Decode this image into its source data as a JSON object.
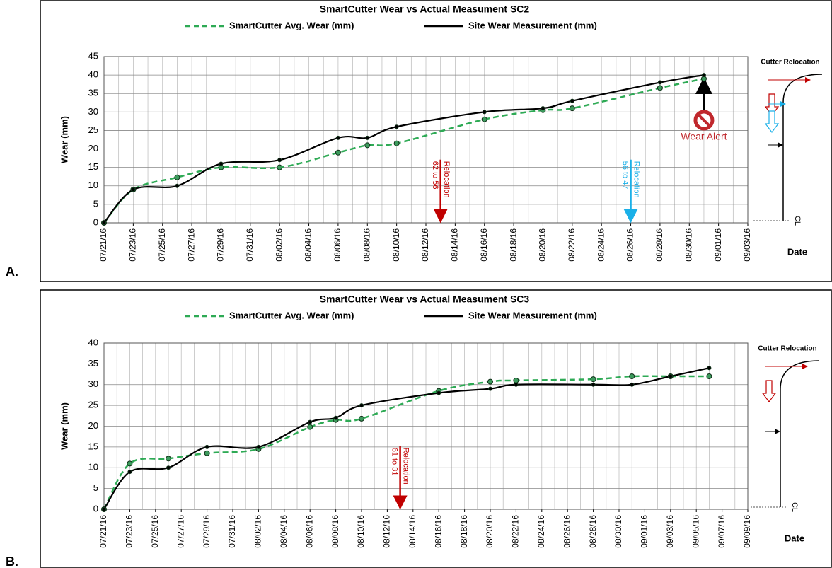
{
  "chart_data": [
    {
      "type": "line",
      "panel_label": "A.",
      "title": "SmartCutter Wear vs Actual Measument SC2",
      "y_label": "Wear (mm)",
      "x_label": "Date",
      "side_title": "Cutter Relocation",
      "centerline": "CL",
      "xlim": [
        "2016-07-21",
        "2016-09-03"
      ],
      "xticks": [
        {
          "value": "2016-07-21",
          "label": "07/21/16"
        },
        {
          "value": "2016-07-23",
          "label": "07/23/16"
        },
        {
          "value": "2016-07-25",
          "label": "07/25/16"
        },
        {
          "value": "2016-07-27",
          "label": "07/27/16"
        },
        {
          "value": "2016-07-29",
          "label": "07/29/16"
        },
        {
          "value": "2016-07-31",
          "label": "07/31/16"
        },
        {
          "value": "2016-08-02",
          "label": "08/02/16"
        },
        {
          "value": "2016-08-04",
          "label": "08/04/16"
        },
        {
          "value": "2016-08-06",
          "label": "08/06/16"
        },
        {
          "value": "2016-08-08",
          "label": "08/08/16"
        },
        {
          "value": "2016-08-10",
          "label": "08/10/16"
        },
        {
          "value": "2016-08-12",
          "label": "08/12/16"
        },
        {
          "value": "2016-08-14",
          "label": "08/14/16"
        },
        {
          "value": "2016-08-16",
          "label": "08/16/16"
        },
        {
          "value": "2016-08-18",
          "label": "08/18/16"
        },
        {
          "value": "2016-08-20",
          "label": "08/20/16"
        },
        {
          "value": "2016-08-22",
          "label": "08/22/16"
        },
        {
          "value": "2016-08-24",
          "label": "08/24/16"
        },
        {
          "value": "2016-08-26",
          "label": "08/26/16"
        },
        {
          "value": "2016-08-28",
          "label": "08/28/16"
        },
        {
          "value": "2016-08-30",
          "label": "08/30/16"
        },
        {
          "value": "2016-09-01",
          "label": "09/01/16"
        },
        {
          "value": "2016-09-03",
          "label": "09/03/16"
        }
      ],
      "x_minor_step_days": 1,
      "ylim": [
        0,
        45
      ],
      "yticks": [
        0,
        5,
        10,
        15,
        20,
        25,
        30,
        35,
        40,
        45
      ],
      "grid": true,
      "series": [
        {
          "name": "SmartCutter Avg. Wear (mm)",
          "color": "#2eaa55",
          "dashed": true,
          "x": [
            "2016-07-21",
            "2016-07-23",
            "2016-07-26",
            "2016-07-29",
            "2016-08-02",
            "2016-08-06",
            "2016-08-08",
            "2016-08-10",
            "2016-08-16",
            "2016-08-20",
            "2016-08-22",
            "2016-08-28",
            "2016-08-31"
          ],
          "values": [
            0,
            9,
            12.3,
            15,
            15,
            19,
            21,
            21.5,
            28,
            30.5,
            31,
            36.5,
            39
          ]
        },
        {
          "name": "Site Wear Measurement (mm)",
          "color": "#000000",
          "dashed": false,
          "x": [
            "2016-07-21",
            "2016-07-23",
            "2016-07-26",
            "2016-07-29",
            "2016-08-02",
            "2016-08-06",
            "2016-08-08",
            "2016-08-10",
            "2016-08-16",
            "2016-08-20",
            "2016-08-22",
            "2016-08-28",
            "2016-08-31"
          ],
          "values": [
            0,
            9,
            10,
            16,
            17,
            23,
            23,
            26,
            30,
            31,
            33,
            38,
            40
          ]
        }
      ],
      "annotations": [
        {
          "text": "Relocation",
          "detail": "62 to 56",
          "x": "2016-08-13",
          "color": "#c00000"
        },
        {
          "text": "Relocation",
          "detail": "56 to 47",
          "x": "2016-08-26",
          "color": "#1ab0e8"
        }
      ],
      "alert": {
        "text": "Wear Alert",
        "x": "2016-08-31",
        "color": "#c0282d"
      }
    },
    {
      "type": "line",
      "panel_label": "B.",
      "title": "SmartCutter Wear vs Actual Measument SC3",
      "y_label": "Wear (mm)",
      "x_label": "Date",
      "side_title": "Cutter Relocation",
      "centerline": "CL",
      "xlim": [
        "2016-07-21",
        "2016-09-09"
      ],
      "xticks": [
        {
          "value": "2016-07-21",
          "label": "07/21/16"
        },
        {
          "value": "2016-07-23",
          "label": "07/23/16"
        },
        {
          "value": "2016-07-25",
          "label": "07/25/16"
        },
        {
          "value": "2016-07-27",
          "label": "07/27/16"
        },
        {
          "value": "2016-07-29",
          "label": "07/29/16"
        },
        {
          "value": "2016-07-31",
          "label": "07/31/16"
        },
        {
          "value": "2016-08-02",
          "label": "08/02/16"
        },
        {
          "value": "2016-08-04",
          "label": "08/04/16"
        },
        {
          "value": "2016-08-06",
          "label": "08/06/16"
        },
        {
          "value": "2016-08-08",
          "label": "08/08/16"
        },
        {
          "value": "2016-08-10",
          "label": "08/10/16"
        },
        {
          "value": "2016-08-12",
          "label": "08/12/16"
        },
        {
          "value": "2016-08-14",
          "label": "08/14/16"
        },
        {
          "value": "2016-08-16",
          "label": "08/16/16"
        },
        {
          "value": "2016-08-18",
          "label": "08/18/16"
        },
        {
          "value": "2016-08-20",
          "label": "08/20/16"
        },
        {
          "value": "2016-08-22",
          "label": "08/22/16"
        },
        {
          "value": "2016-08-24",
          "label": "08/24/16"
        },
        {
          "value": "2016-08-26",
          "label": "08/26/16"
        },
        {
          "value": "2016-08-28",
          "label": "08/28/16"
        },
        {
          "value": "2016-08-30",
          "label": "08/30/16"
        },
        {
          "value": "2016-09-01",
          "label": "09/01/16"
        },
        {
          "value": "2016-09-03",
          "label": "09/03/16"
        },
        {
          "value": "2016-09-05",
          "label": "09/05/16"
        },
        {
          "value": "2016-09-07",
          "label": "09/07/16"
        },
        {
          "value": "2016-09-09",
          "label": "09/09/16"
        }
      ],
      "x_minor_step_days": 1,
      "ylim": [
        0,
        40
      ],
      "yticks": [
        0,
        5,
        10,
        15,
        20,
        25,
        30,
        35,
        40
      ],
      "grid": true,
      "series": [
        {
          "name": "SmartCutter Avg. Wear (mm)",
          "color": "#2eaa55",
          "dashed": true,
          "x": [
            "2016-07-21",
            "2016-07-23",
            "2016-07-26",
            "2016-07-29",
            "2016-08-02",
            "2016-08-06",
            "2016-08-08",
            "2016-08-10",
            "2016-08-16",
            "2016-08-20",
            "2016-08-22",
            "2016-08-28",
            "2016-08-31",
            "2016-09-03",
            "2016-09-06"
          ],
          "values": [
            0,
            11,
            12.2,
            13.5,
            14.5,
            19.8,
            21.5,
            21.8,
            28.5,
            30.7,
            31,
            31.3,
            32,
            32,
            32
          ]
        },
        {
          "name": "Site Wear Measurement (mm)",
          "color": "#000000",
          "dashed": false,
          "x": [
            "2016-07-21",
            "2016-07-23",
            "2016-07-26",
            "2016-07-29",
            "2016-08-02",
            "2016-08-06",
            "2016-08-08",
            "2016-08-10",
            "2016-08-16",
            "2016-08-20",
            "2016-08-22",
            "2016-08-28",
            "2016-08-31",
            "2016-09-03",
            "2016-09-06"
          ],
          "values": [
            0,
            9,
            10,
            15,
            15,
            21,
            22,
            25,
            28,
            29,
            30,
            30,
            30,
            32,
            34
          ]
        }
      ],
      "annotations": [
        {
          "text": "Relocation",
          "detail": "61 to 31",
          "x": "2016-08-13",
          "color": "#c00000"
        }
      ]
    }
  ]
}
